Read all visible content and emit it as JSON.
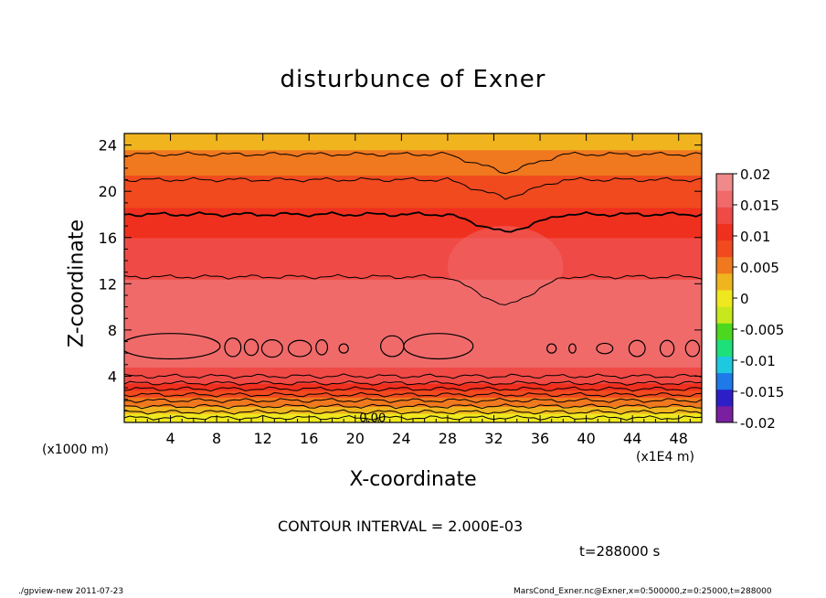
{
  "chart_data": {
    "type": "heatmap",
    "title": "disturbunce of Exner",
    "xlabel": "X-coordinate",
    "ylabel": "Z-coordinate",
    "x_unit_label": "(x1000 m)",
    "x_multiplier_label": "(x1E4 m)",
    "xlim": [
      0,
      50
    ],
    "ylim": [
      0,
      25
    ],
    "x_ticks": [
      4,
      8,
      12,
      16,
      20,
      24,
      28,
      32,
      36,
      40,
      44,
      48
    ],
    "y_ticks": [
      4,
      8,
      12,
      16,
      20,
      24
    ],
    "colorbar": {
      "levels": [
        0.02,
        0.015,
        0.01,
        0.005,
        0,
        -0.005,
        -0.01,
        -0.015,
        -0.02
      ],
      "tick_labels": [
        "0.02",
        "0.015",
        "0.01",
        "0.005",
        "0",
        "-0.005",
        "-0.01",
        "-0.015",
        "-0.02"
      ],
      "colors": [
        "#7a1fa0",
        "#2c1fc8",
        "#1e7ae8",
        "#1ec8e0",
        "#1ee07a",
        "#4cd81e",
        "#c8e81e",
        "#f0e81e",
        "#f0b41e",
        "#f0781e",
        "#f04a1e",
        "#f0301e",
        "#f04a46",
        "#f06a6a",
        "#f08a8a"
      ]
    },
    "field_profile": {
      "z": [
        0,
        1,
        2,
        3,
        4,
        6,
        8,
        10,
        12,
        14,
        16,
        18,
        20,
        22,
        23,
        24,
        25
      ],
      "values": [
        -0.001,
        0.002,
        0.006,
        0.01,
        0.014,
        0.0155,
        0.016,
        0.0155,
        0.015,
        0.0135,
        0.012,
        0.01,
        0.008,
        0.006,
        0.005,
        0.0035,
        0.0025
      ]
    },
    "contour_interval": 0.002,
    "contour_lines_z": [
      0.4,
      0.9,
      1.4,
      1.9,
      2.4,
      2.9,
      3.4,
      4.0,
      12.6,
      18.0,
      21.0,
      23.2
    ],
    "high_cells": [
      {
        "x": 4.0,
        "z": 6.6,
        "w": 8.6,
        "h": 2.2
      },
      {
        "x": 9.4,
        "z": 6.5,
        "w": 1.4,
        "h": 1.6
      },
      {
        "x": 11.0,
        "z": 6.5,
        "w": 1.2,
        "h": 1.4
      },
      {
        "x": 12.8,
        "z": 6.4,
        "w": 1.8,
        "h": 1.5
      },
      {
        "x": 15.2,
        "z": 6.4,
        "w": 2.0,
        "h": 1.4
      },
      {
        "x": 17.1,
        "z": 6.5,
        "w": 1.0,
        "h": 1.3
      },
      {
        "x": 19.0,
        "z": 6.4,
        "w": 0.8,
        "h": 0.8
      },
      {
        "x": 23.2,
        "z": 6.6,
        "w": 2.0,
        "h": 1.8
      },
      {
        "x": 27.2,
        "z": 6.6,
        "w": 6.0,
        "h": 2.2
      },
      {
        "x": 37.0,
        "z": 6.4,
        "w": 0.8,
        "h": 0.8
      },
      {
        "x": 38.8,
        "z": 6.4,
        "w": 0.6,
        "h": 0.8
      },
      {
        "x": 41.6,
        "z": 6.4,
        "w": 1.4,
        "h": 0.9
      },
      {
        "x": 44.4,
        "z": 6.4,
        "w": 1.4,
        "h": 1.4
      },
      {
        "x": 47.0,
        "z": 6.4,
        "w": 1.2,
        "h": 1.4
      },
      {
        "x": 49.2,
        "z": 6.4,
        "w": 1.2,
        "h": 1.4
      }
    ],
    "zero_contour_label": "0.00",
    "contour_interval_text": "CONTOUR INTERVAL = 2.000E-03",
    "time_label": "t=288000 s"
  },
  "footer": {
    "left": "./gpview-new  2011-07-23",
    "right": "MarsCond_Exner.nc@Exner,x=0:500000,z=0:25000,t=288000"
  }
}
